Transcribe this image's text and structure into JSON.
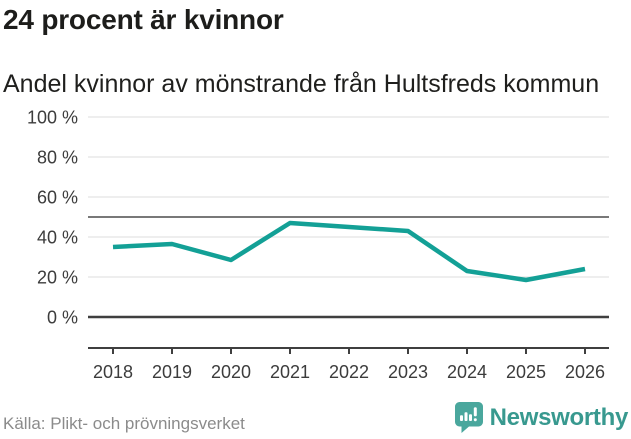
{
  "header": {
    "title": "24 procent är kvinnor",
    "subtitle": "Andel kvinnor av mönstrande från Hultsfreds kommun"
  },
  "chart_data": {
    "type": "line",
    "title": "24 procent är kvinnor",
    "subtitle": "Andel kvinnor av mönstrande från Hultsfreds kommun",
    "series_name": "Andel kvinnor av mönstrande",
    "x": [
      2018,
      2019,
      2020,
      2021,
      2022,
      2023,
      2024,
      2025,
      2026
    ],
    "values": [
      35,
      36.5,
      28.5,
      47,
      45,
      43,
      23,
      18.5,
      24
    ],
    "unit": "%",
    "ylim": [
      0,
      100
    ],
    "yticks": [
      0,
      20,
      40,
      60,
      80,
      100
    ],
    "ytick_suffix": " %",
    "reference_line": 50,
    "grid": true,
    "legend": "none",
    "line_color": "#13a096"
  },
  "colors": {
    "line": "#13a096",
    "grid": "#e4e4e4",
    "reference": "#787878",
    "axis": "#3f3f3f",
    "axis_text": "#3c3c3c",
    "title_text": "#1d1d1b",
    "source_text": "#8b8b8b",
    "brand_teal": "#4aa79d",
    "brand_word_teal": "#38998f"
  },
  "footer": {
    "source": "Källa: Plikt- och prövningsverket",
    "brand": "Newsworthy"
  }
}
